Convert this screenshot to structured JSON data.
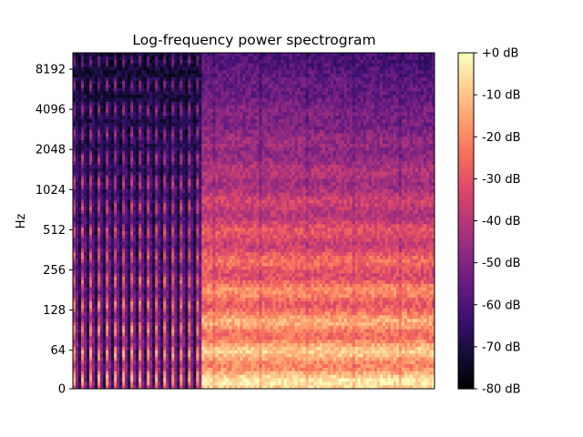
{
  "chart_data": {
    "type": "heatmap",
    "title": "Log-frequency power spectrogram",
    "xlabel": "",
    "ylabel": "Hz",
    "y_scale": "log",
    "y_ticks": [
      "0",
      "64",
      "128",
      "256",
      "512",
      "1024",
      "2048",
      "4096",
      "8192"
    ],
    "x_ticks": [],
    "grid": false,
    "colormap": "magma",
    "colorbar": {
      "ticks": [
        "+0 dB",
        "-10 dB",
        "-20 dB",
        "-30 dB",
        "-40 dB",
        "-50 dB",
        "-60 dB",
        "-70 dB",
        "-80 dB"
      ],
      "range_db": [
        -80,
        0
      ]
    },
    "segments": [
      {
        "description": "percussive onsets, vertical striations",
        "time_fraction": [
          0.0,
          0.35
        ]
      },
      {
        "description": "sustained harmonic content with horizontal bands",
        "time_fraction": [
          0.35,
          1.0
        ]
      }
    ]
  }
}
